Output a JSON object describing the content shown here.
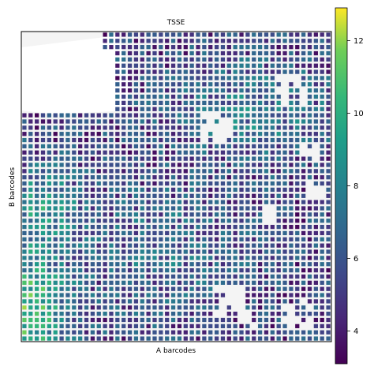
{
  "chart_data": {
    "type": "heatmap",
    "title": "TSSE",
    "xlabel": "A barcodes",
    "ylabel": "B barcodes",
    "grid_size": 50,
    "colormap": "viridis",
    "colorbar": {
      "vmin": 3.1,
      "vmax": 12.9,
      "ticks": [
        4,
        6,
        8,
        10,
        12
      ]
    },
    "regions": [
      {
        "description": "bottom-left high TSSE band",
        "level": 10.5
      },
      {
        "description": "left-middle elevated patch",
        "level": 9.5
      },
      {
        "description": "upper-right moderate ridge",
        "level": 7.0
      },
      {
        "description": "upper-left low TSSE area",
        "level": 4.0
      }
    ]
  }
}
